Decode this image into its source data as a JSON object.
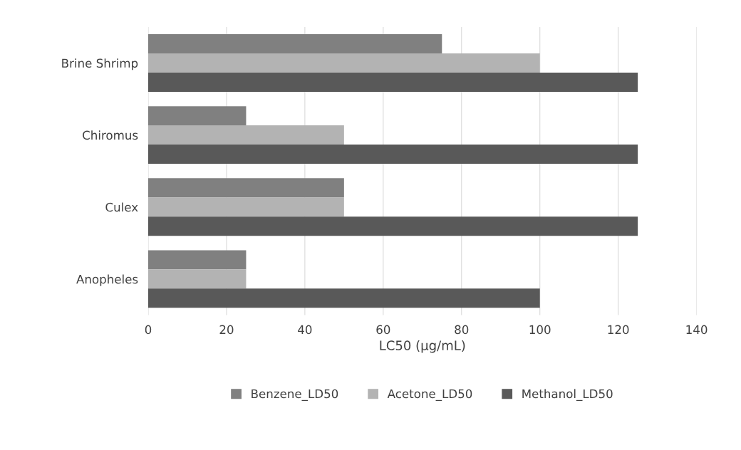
{
  "chart_data": {
    "type": "bar",
    "orientation": "horizontal",
    "categories": [
      "Brine Shrimp",
      "Chiromus",
      "Culex",
      "Anopheles"
    ],
    "series": [
      {
        "name": "Benzene_LD50",
        "color": "#808080",
        "values": [
          75,
          25,
          50,
          25
        ]
      },
      {
        "name": "Acetone_LD50",
        "color": "#b3b3b3",
        "values": [
          100,
          50,
          50,
          25
        ]
      },
      {
        "name": "Methanol_LD50",
        "color": "#595959",
        "values": [
          125,
          125,
          125,
          100
        ]
      }
    ],
    "xlabel": "LC50 (µg/mL)",
    "xlim": [
      0,
      140
    ],
    "xticks": [
      0,
      20,
      40,
      60,
      80,
      100,
      120,
      140
    ],
    "grid": "x",
    "legend": "bottom"
  }
}
